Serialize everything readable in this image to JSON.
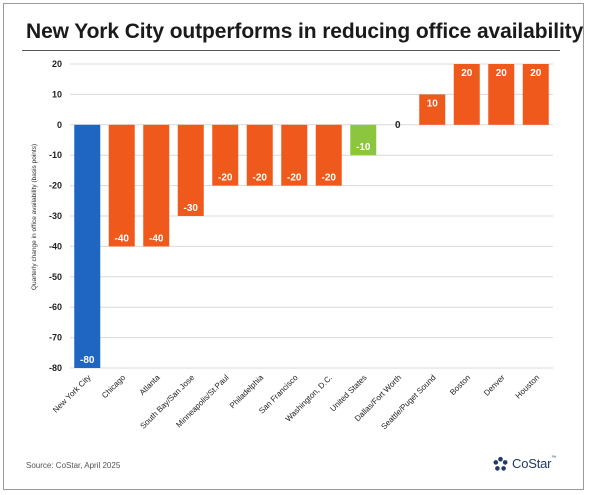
{
  "header": {
    "title": "New York City outperforms in reducing office availability"
  },
  "footer": {
    "source": "Source: CoStar, April 2025",
    "logo_text": "CoStar",
    "logo_tm": "™"
  },
  "colors": {
    "highlight": "#1f66c2",
    "main": "#f0591c",
    "us": "#8cc63f",
    "grid": "#d9d9d9"
  },
  "chart_data": {
    "type": "bar",
    "ylabel": "Quarterly change in office availability (basis points)",
    "ylim": [
      -80,
      20
    ],
    "yticks": [
      20,
      10,
      0,
      -10,
      -20,
      -30,
      -40,
      -50,
      -60,
      -70,
      -80
    ],
    "grid": true,
    "categories": [
      "New York City",
      "Chicago",
      "Atlanta",
      "South Bay/San Jose",
      "Minneapolis/St.Paul",
      "Philadelphia",
      "San Francisco",
      "Washington, D.C.",
      "United States",
      "Dallas/Fort Worth",
      "Seattle/Puget Sound",
      "Boston",
      "Denver",
      "Houston"
    ],
    "values": [
      -80,
      -40,
      -40,
      -30,
      -20,
      -20,
      -20,
      -20,
      -10,
      0,
      10,
      20,
      20,
      20
    ],
    "data_labels": [
      "-80",
      "-40",
      "-40",
      "-30",
      "-20",
      "-20",
      "-20",
      "-20",
      "-10",
      "0",
      "10",
      "20",
      "20",
      "20"
    ],
    "bar_colors": [
      "highlight",
      "main",
      "main",
      "main",
      "main",
      "main",
      "main",
      "main",
      "us",
      "main",
      "main",
      "main",
      "main",
      "main"
    ]
  }
}
